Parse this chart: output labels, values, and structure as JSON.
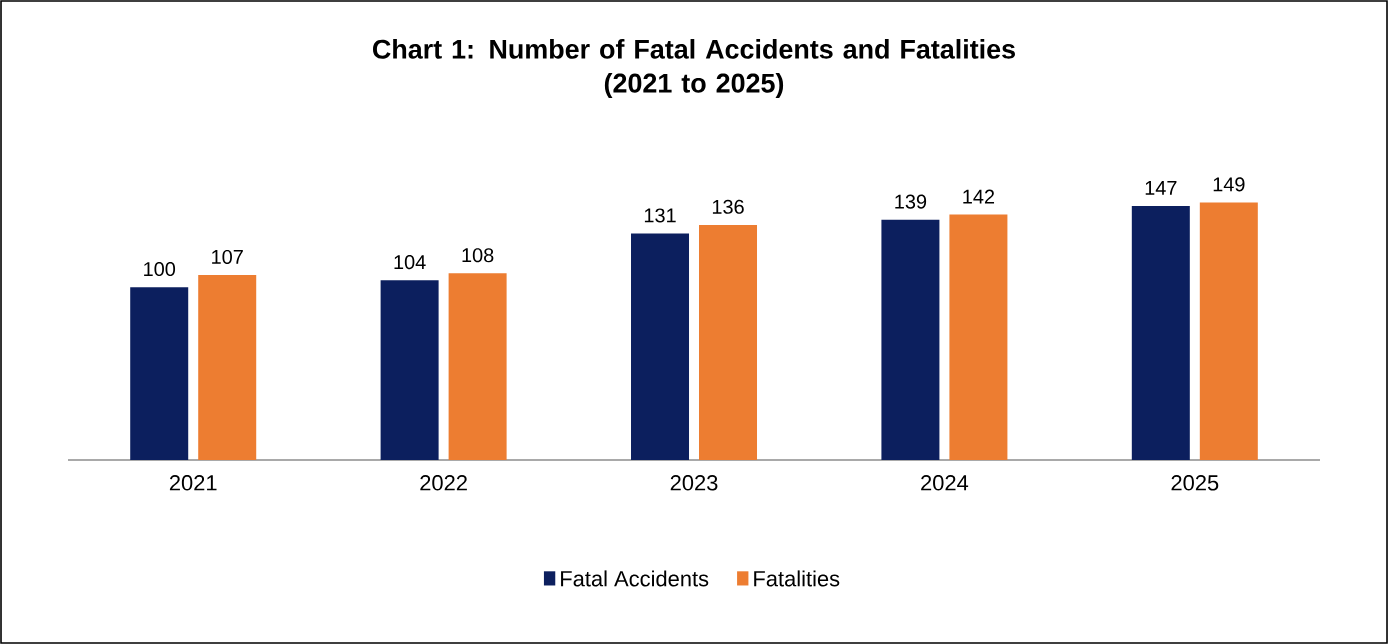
{
  "chart_data": {
    "type": "bar",
    "title": "Chart 1: Number of Fatal Accidents and Fatalities\n(2021 to 2025)",
    "categories": [
      "2021",
      "2022",
      "2023",
      "2024",
      "2025"
    ],
    "series": [
      {
        "name": "Fatal Accidents",
        "color": "#0c1f5e",
        "values": [
          100,
          104,
          131,
          139,
          147
        ]
      },
      {
        "name": "Fatalities",
        "color": "#ed7d31",
        "values": [
          107,
          108,
          136,
          142,
          149
        ]
      }
    ],
    "data_labels": true,
    "grid": false,
    "legend": "bottom"
  }
}
